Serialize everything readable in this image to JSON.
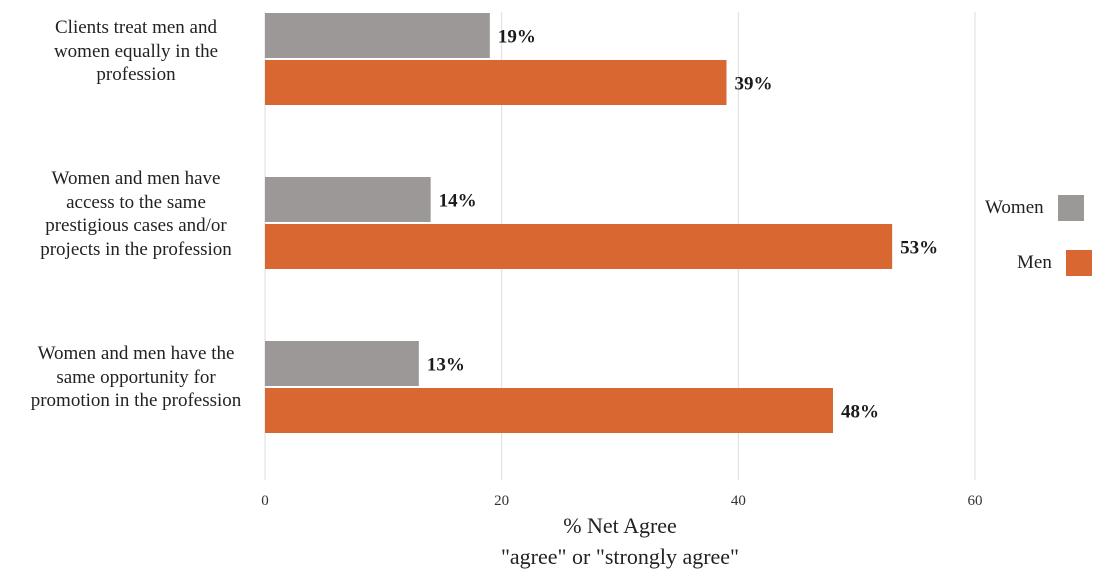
{
  "chart_data": {
    "type": "bar",
    "orientation": "horizontal",
    "categories": [
      "Clients treat men and women equally in the profession",
      "Women and men have access to the same prestigious cases and/or projects in the profession",
      "Women and men have the same opportunity for promotion in the profession"
    ],
    "category_lines": [
      [
        "Clients treat men and",
        "women equally in the",
        "profession"
      ],
      [
        "Women and men have",
        "access to the same",
        "prestigious cases and/or",
        "projects in the profession"
      ],
      [
        "Women and men have the",
        "same opportunity for",
        "promotion in the profession"
      ]
    ],
    "series": [
      {
        "name": "Women",
        "color": "#9c9897",
        "values": [
          19,
          14,
          13
        ],
        "labels": [
          "19%",
          "14%",
          "13%"
        ]
      },
      {
        "name": "Men",
        "color": "#d86731",
        "values": [
          39,
          53,
          48
        ],
        "labels": [
          "39%",
          "53%",
          "48%"
        ]
      }
    ],
    "xlim": [
      0,
      70
    ],
    "xticks": [
      0,
      20,
      40,
      60
    ],
    "xlabel_line1": "% Net Agree",
    "xlabel_line2": "\"agree\" or \"strongly agree\"",
    "grid": true,
    "legend_position": "right"
  }
}
